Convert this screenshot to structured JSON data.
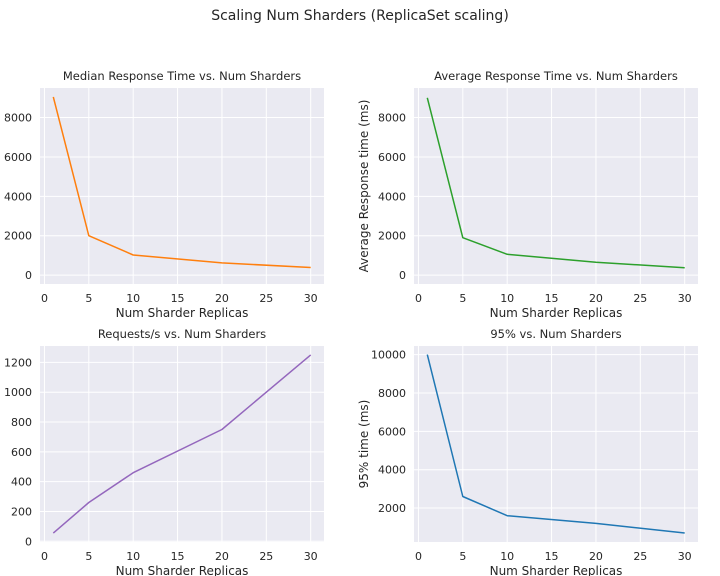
{
  "figure": {
    "title": "Scaling Num Sharders (ReplicaSet scaling)"
  },
  "chart_data": [
    {
      "type": "line",
      "title": "Median Response Time vs. Num Sharders",
      "xlabel": "Num Sharder Replicas",
      "ylabel": "",
      "x": [
        1,
        5,
        10,
        20,
        30
      ],
      "series": [
        {
          "color": "#ff7f0e",
          "values": [
            9050,
            2000,
            1020,
            620,
            390
          ]
        }
      ],
      "xlim": [
        -0.5,
        31.5
      ],
      "ylim": [
        -450,
        9500
      ],
      "xticks": [
        0,
        5,
        10,
        15,
        20,
        25,
        30
      ],
      "yticks": [
        0,
        2000,
        4000,
        6000,
        8000
      ],
      "grid": true
    },
    {
      "type": "line",
      "title": "Average Response Time vs. Num Sharders",
      "xlabel": "Num Sharder Replicas",
      "ylabel": "Average Response time (ms)",
      "x": [
        1,
        5,
        10,
        20,
        30
      ],
      "series": [
        {
          "color": "#2ca02c",
          "values": [
            9000,
            1900,
            1060,
            650,
            380
          ]
        }
      ],
      "xlim": [
        -0.5,
        31.5
      ],
      "ylim": [
        -450,
        9500
      ],
      "xticks": [
        0,
        5,
        10,
        15,
        20,
        25,
        30
      ],
      "yticks": [
        0,
        2000,
        4000,
        6000,
        8000
      ],
      "grid": true
    },
    {
      "type": "line",
      "title": "Requests/s vs. Num Sharders",
      "xlabel": "Num Sharder Replicas",
      "ylabel": "",
      "x": [
        1,
        5,
        10,
        20,
        30
      ],
      "series": [
        {
          "color": "#9467bd",
          "values": [
            55,
            260,
            460,
            750,
            1250
          ]
        }
      ],
      "xlim": [
        -0.5,
        31.5
      ],
      "ylim": [
        -5,
        1310
      ],
      "xticks": [
        0,
        5,
        10,
        15,
        20,
        25,
        30
      ],
      "yticks": [
        0,
        200,
        400,
        600,
        800,
        1000,
        1200
      ],
      "grid": true
    },
    {
      "type": "line",
      "title": "95% vs. Num Sharders",
      "xlabel": "Num Sharder Replicas",
      "ylabel": "95% time (ms)",
      "x": [
        1,
        5,
        10,
        20,
        30
      ],
      "series": [
        {
          "color": "#1f77b4",
          "values": [
            10000,
            2600,
            1600,
            1200,
            700
          ]
        }
      ],
      "xlim": [
        -0.5,
        31.5
      ],
      "ylim": [
        230,
        10450
      ],
      "xticks": [
        0,
        5,
        10,
        15,
        20,
        25,
        30
      ],
      "yticks": [
        2000,
        4000,
        6000,
        8000,
        10000
      ],
      "grid": true
    }
  ]
}
